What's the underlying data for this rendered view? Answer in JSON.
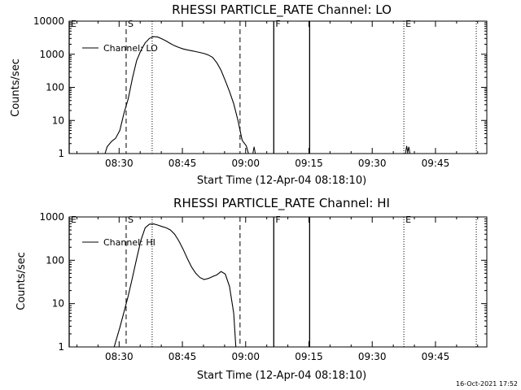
{
  "footer": {
    "timestamp": "16-Oct-2021 17:52"
  },
  "chart_data": [
    {
      "type": "line",
      "title": "RHESSI PARTICLE_RATE Channel: LO",
      "xlabel": "Start Time (12-Apr-04 08:18:10)",
      "ylabel": "Counts/sec",
      "yscale": "log",
      "ylim": [
        1,
        10000
      ],
      "y_ticks": [
        1,
        10,
        100,
        1000,
        10000
      ],
      "y_tick_labels": [
        "1",
        "10",
        "100",
        "1000",
        "10000"
      ],
      "xlim": [
        "08:18:10",
        "09:57:10"
      ],
      "x_ticks": [
        "08:30",
        "08:45",
        "09:00",
        "09:15",
        "09:30",
        "09:45"
      ],
      "legend": {
        "entries": [
          "Channel: LO"
        ],
        "position": "top-left"
      },
      "markers": [
        {
          "time": "08:18:10",
          "style": "solid",
          "label": "E"
        },
        {
          "time": "08:31:40",
          "style": "dashed",
          "label": "S"
        },
        {
          "time": "08:37:50",
          "style": "dotted",
          "label": ""
        },
        {
          "time": "08:58:40",
          "style": "dashed",
          "label": ""
        },
        {
          "time": "09:06:40",
          "style": "solid",
          "label": "F"
        },
        {
          "time": "09:15:10",
          "style": "solid",
          "label": ""
        },
        {
          "time": "09:37:30",
          "style": "dotted",
          "label": "E"
        },
        {
          "time": "09:54:40",
          "style": "dotted",
          "label": ""
        }
      ],
      "series": [
        {
          "name": "Channel: LO",
          "points": [
            [
              "08:26:40",
              1.0
            ],
            [
              "08:27:10",
              1.6
            ],
            [
              "08:28:10",
              2.3
            ],
            [
              "08:29:10",
              2.9
            ],
            [
              "08:30:10",
              5.0
            ],
            [
              "08:31:10",
              17
            ],
            [
              "08:32:10",
              45
            ],
            [
              "08:33:10",
              190
            ],
            [
              "08:34:10",
              650
            ],
            [
              "08:35:10",
              1300
            ],
            [
              "08:36:10",
              2200
            ],
            [
              "08:37:10",
              3000
            ],
            [
              "08:38:10",
              3400
            ],
            [
              "08:39:10",
              3300
            ],
            [
              "08:40:10",
              2900
            ],
            [
              "08:41:10",
              2500
            ],
            [
              "08:42:10",
              2100
            ],
            [
              "08:43:10",
              1800
            ],
            [
              "08:44:10",
              1600
            ],
            [
              "08:45:10",
              1450
            ],
            [
              "08:46:10",
              1350
            ],
            [
              "08:47:10",
              1280
            ],
            [
              "08:48:10",
              1200
            ],
            [
              "08:49:10",
              1130
            ],
            [
              "08:50:10",
              1050
            ],
            [
              "08:51:10",
              950
            ],
            [
              "08:52:10",
              800
            ],
            [
              "08:53:10",
              550
            ],
            [
              "08:54:10",
              330
            ],
            [
              "08:55:10",
              160
            ],
            [
              "08:56:10",
              75
            ],
            [
              "08:57:10",
              32
            ],
            [
              "08:58:10",
              10
            ],
            [
              "08:59:10",
              2.5
            ],
            [
              "09:00:10",
              1.7
            ],
            [
              "09:00:40",
              1.0
            ]
          ]
        }
      ],
      "spikes": [
        {
          "time": "09:02:00",
          "value": 1.6
        },
        {
          "time": "09:38:10",
          "value": 1.7
        },
        {
          "time": "09:38:40",
          "value": 1.6
        }
      ]
    },
    {
      "type": "line",
      "title": "RHESSI PARTICLE_RATE Channel: HI",
      "xlabel": "Start Time (12-Apr-04 08:18:10)",
      "ylabel": "Counts/sec",
      "yscale": "log",
      "ylim": [
        1,
        1000
      ],
      "y_ticks": [
        1,
        10,
        100,
        1000
      ],
      "y_tick_labels": [
        "1",
        "10",
        "100",
        "1000"
      ],
      "xlim": [
        "08:18:10",
        "09:57:10"
      ],
      "x_ticks": [
        "08:30",
        "08:45",
        "09:00",
        "09:15",
        "09:30",
        "09:45"
      ],
      "legend": {
        "entries": [
          "Channel: HI"
        ],
        "position": "top-left"
      },
      "markers": [
        {
          "time": "08:18:10",
          "style": "solid",
          "label": "E"
        },
        {
          "time": "08:31:40",
          "style": "dashed",
          "label": "S"
        },
        {
          "time": "08:37:50",
          "style": "dotted",
          "label": ""
        },
        {
          "time": "08:58:40",
          "style": "dashed",
          "label": ""
        },
        {
          "time": "09:06:40",
          "style": "solid",
          "label": "F"
        },
        {
          "time": "09:15:10",
          "style": "solid",
          "label": ""
        },
        {
          "time": "09:37:30",
          "style": "dotted",
          "label": "E"
        },
        {
          "time": "09:54:40",
          "style": "dotted",
          "label": ""
        }
      ],
      "series": [
        {
          "name": "Channel: HI",
          "points": [
            [
              "08:28:50",
              1.0
            ],
            [
              "08:29:10",
              1.3
            ],
            [
              "08:30:10",
              2.8
            ],
            [
              "08:31:10",
              6.5
            ],
            [
              "08:32:10",
              15
            ],
            [
              "08:33:10",
              40
            ],
            [
              "08:34:10",
              110
            ],
            [
              "08:35:10",
              290
            ],
            [
              "08:36:10",
              560
            ],
            [
              "08:37:10",
              680
            ],
            [
              "08:38:10",
              690
            ],
            [
              "08:39:10",
              650
            ],
            [
              "08:40:10",
              600
            ],
            [
              "08:41:10",
              560
            ],
            [
              "08:42:10",
              500
            ],
            [
              "08:43:10",
              400
            ],
            [
              "08:44:10",
              280
            ],
            [
              "08:45:10",
              180
            ],
            [
              "08:46:10",
              110
            ],
            [
              "08:47:10",
              70
            ],
            [
              "08:48:10",
              50
            ],
            [
              "08:49:10",
              40
            ],
            [
              "08:50:10",
              36
            ],
            [
              "08:51:10",
              38
            ],
            [
              "08:52:10",
              42
            ],
            [
              "08:53:10",
              46
            ],
            [
              "08:54:10",
              55
            ],
            [
              "08:55:10",
              48
            ],
            [
              "08:56:10",
              25
            ],
            [
              "08:57:10",
              6
            ],
            [
              "08:57:40",
              1.0
            ]
          ]
        }
      ]
    }
  ]
}
